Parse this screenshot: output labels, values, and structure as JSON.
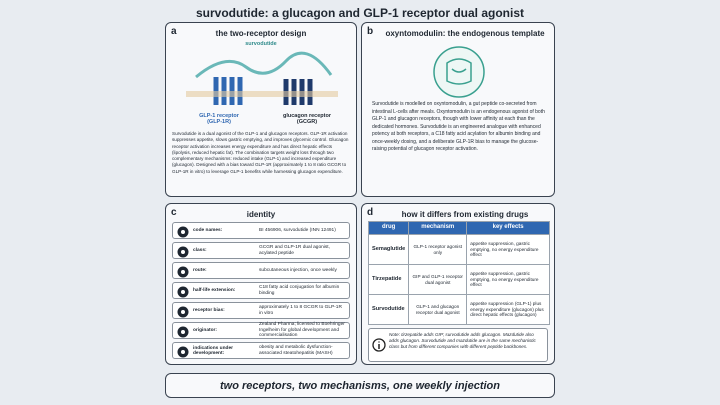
{
  "header": {
    "title": "survodutide: a glucagon and GLP-1 receptor dual agonist"
  },
  "panel_a": {
    "letter": "a",
    "title": "the two-receptor design",
    "molecule": "survodutide",
    "receptor_left": "GLP-1 receptor\n(GLP-1R)",
    "receptor_right": "glucagon receptor\n(GCGR)",
    "text": "Survodutide is a dual agonist of the GLP-1 and glucagon receptors. GLP-1R activation suppresses appetite, slows gastric emptying, and improves glycemic control. Glucagon receptor activation increases energy expenditure and has direct hepatic effects (lipolysis, reduced hepatic fat). The combination targets weight loss through two complementary mechanisms: reduced intake (GLP-1) and increased expenditure (glucagon). Designed with a bias toward GLP-1R (approximately 1 to 8 ratio GCGR to GLP-1R in vitro) to leverage GLP-1 benefits while harnessing glucagon expenditure."
  },
  "panel_b": {
    "letter": "b",
    "title": "oxyntomodulin: the endogenous template",
    "text": "Survodutide is modelled on oxyntomodulin, a gut peptide co-secreted from intestinal L-cells after meals. Oxyntomodulin is an endogenous agonist of both GLP-1 and glucagon receptors, though with lower affinity at each than the dedicated hormones. Survodutide is an engineered analogue with enhanced potency at both receptors, a C18 fatty acid acylation for albumin binding and once-weekly dosing, and a deliberate GLP-1R bias to manage the glucose-raising potential of glucagon receptor activation."
  },
  "panel_c": {
    "letter": "c",
    "title": "identity",
    "rows": [
      [
        "code names:",
        "BI 456906, survodutide (INN 12491)"
      ],
      [
        "class:",
        "GCGR and GLP-1R dual agonist, acylated peptide"
      ],
      [
        "route:",
        "subcutaneous injection, once weekly"
      ],
      [
        "half-life extension:",
        "C18 fatty acid conjugation for albumin binding"
      ],
      [
        "receptor bias:",
        "approximately 1 to 8 GCGR to GLP-1R in vitro"
      ],
      [
        "originator:",
        "Zealand Pharma; licensed to Boehringer Ingelheim for global development and commercialisation"
      ],
      [
        "indications under development:",
        "obesity and metabolic dysfunction-associated steatohepatitis (MASH)"
      ]
    ]
  },
  "panel_d": {
    "letter": "d",
    "title": "how it differs from existing drugs",
    "columns": [
      "drug",
      "mechanism",
      "key effects"
    ],
    "rows": [
      [
        "Semaglutide",
        "GLP-1 receptor agonist only",
        "appetite suppression, gastric emptying, no energy expenditure effect"
      ],
      [
        "Tirzepatide",
        "GIP and GLP-1 receptor dual agonist",
        "appetite suppression, gastric emptying, no energy expenditure effect"
      ],
      [
        "Survodutide",
        "GLP-1 and glucagon receptor dual agonist",
        "appetite suppression (GLP-1) plus energy expenditure (glucagon) plus direct hepatic effects (glucagon)"
      ]
    ],
    "note": "Note: tirzepatide adds GIP; survodutide adds glucagon. Mazdutide also adds glucagon. Survodutide and mazdutide are in the same mechanistic class but from different companies with different peptide backbones."
  },
  "footer": {
    "text": "two receptors, two mechanisms, one weekly injection"
  }
}
